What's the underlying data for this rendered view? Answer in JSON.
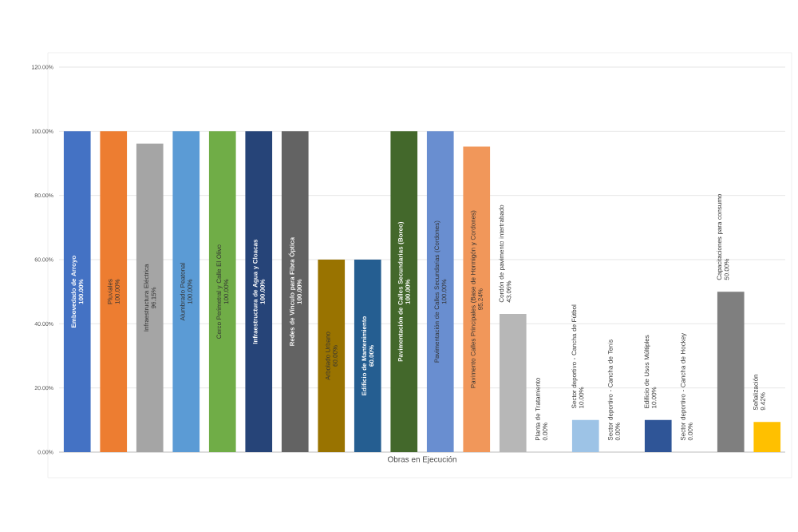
{
  "chart_data": {
    "type": "bar",
    "xlabel": "Obras en Ejecución",
    "categories": [
      "Embovedado de Arroyo",
      "Pluviales",
      "Infraestructura Eléctrica",
      "Alumbrado Peatonal",
      "Cerco Perimetral y Calle El Olivo",
      "Infraestructura de Agua y Cloacas",
      "Redes de Vínculo para Fibra Óptica",
      "Arbolado Urbano",
      "Edificio de Mantenimiento",
      "Pavimentación de Calles Secundarias (Boreo)",
      "Pavimentación de Calles Secundarias (Cordones)",
      "Pavimento Calles Principales (Base de Hormigón y Cordones)",
      "Cordón de pavimento intertrabado",
      "Planta de Tratamiento",
      "Sector deportivo - Cancha de Fútbol",
      "Sector deportivo - Cancha de Tenis",
      "Edificio de Usos Múltiples",
      "Sector deportivo - Cancha de Hockey",
      "Capacitaciones para consumo",
      "Señalización"
    ],
    "values": [
      100,
      100,
      96.15,
      100,
      100,
      100,
      100,
      60,
      60,
      100,
      100,
      95.24,
      43.06,
      0,
      10,
      0,
      10,
      0,
      50,
      9.42
    ],
    "value_labels": [
      "100.00%",
      "100.00%",
      "96.15%",
      "100.00%",
      "100.00%",
      "100.00%",
      "100.00%",
      "60.00%",
      "60.00%",
      "100.00%",
      "100.00%",
      "95.24%",
      "43.06%",
      "0.00%",
      "10.00%",
      "0.00%",
      "10.00%",
      "0.00%",
      "50.00%",
      "9.42%"
    ],
    "colors": [
      "#4472c4",
      "#ed7d31",
      "#a5a5a5",
      "#5b9bd5",
      "#70ad47",
      "#264478",
      "#636363",
      "#997300",
      "#255e91",
      "#43682b",
      "#698ed0",
      "#f1975a",
      "#b7b7b7",
      "#ffffff",
      "#9dc3e6",
      "#ffffff",
      "#2f5597",
      "#ffffff",
      "#7f7f7f",
      "#ffc000"
    ],
    "ylim": [
      0,
      120
    ],
    "yticks": [
      {
        "value": 0,
        "label": "0.00%"
      },
      {
        "value": 20,
        "label": "20.00%"
      },
      {
        "value": 40,
        "label": "40.00%"
      },
      {
        "value": 60,
        "label": "60.00%"
      },
      {
        "value": 80,
        "label": "80.00%"
      },
      {
        "value": 100,
        "label": "100.00%"
      },
      {
        "value": 120,
        "label": "120.00%"
      }
    ],
    "grid": "y"
  }
}
